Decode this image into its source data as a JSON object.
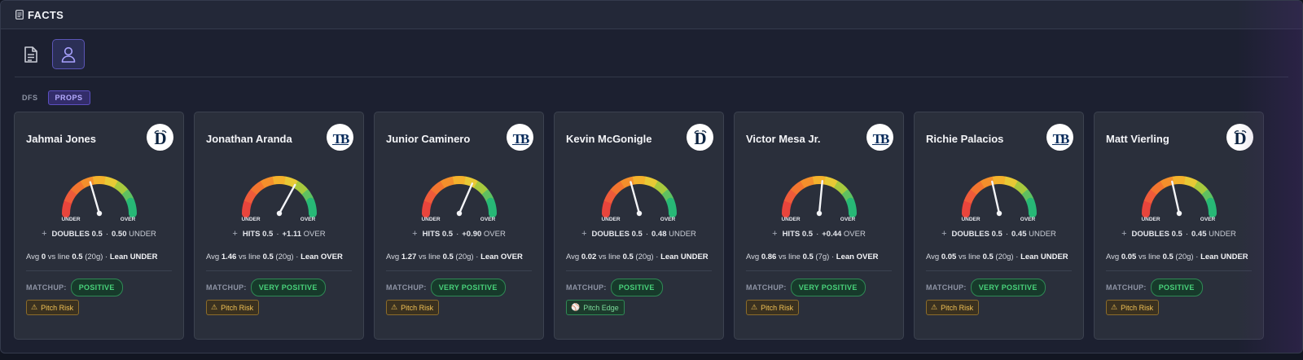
{
  "panel": {
    "title": "FACTS",
    "title_icon": "document-icon"
  },
  "tabs": [
    {
      "icon": "document-icon",
      "active": false
    },
    {
      "icon": "user-icon",
      "active": true
    }
  ],
  "modes": {
    "dfs_label": "DFS",
    "props_label": "PROPS",
    "active": "PROPS"
  },
  "gauge_labels": {
    "under": "UNDER",
    "over": "OVER"
  },
  "matchup_label": "MATCHUP:",
  "colors": {
    "accent": "#5b55b5",
    "positive": "#48d27a",
    "warning": "#f0c054",
    "tigers_navy": "#0c2340",
    "rays_navy": "#092c5c"
  },
  "cards": [
    {
      "name": "Jahmai Jones",
      "team_logo": "tigers-d-logo",
      "logo_text": "D",
      "stat": "DOUBLES 0.5",
      "edge": "0.50",
      "direction": "UNDER",
      "needle": -0.18,
      "avg_label": "Avg",
      "avg": "0",
      "vs_line": "vs line",
      "line": "0.5",
      "games": "(20g)",
      "lean_label": "Lean",
      "lean": "UNDER",
      "matchup": "POSITIVE",
      "risk": "Pitch Risk",
      "risk_type": "warn"
    },
    {
      "name": "Jonathan Aranda",
      "team_logo": "rays-tb-logo",
      "logo_text": "TB",
      "stat": "HITS 0.5",
      "edge": "+1.11",
      "direction": "OVER",
      "needle": 0.32,
      "avg_label": "Avg",
      "avg": "1.46",
      "vs_line": "vs line",
      "line": "0.5",
      "games": "(20g)",
      "lean_label": "Lean",
      "lean": "OVER",
      "matchup": "VERY POSITIVE",
      "risk": "Pitch Risk",
      "risk_type": "warn"
    },
    {
      "name": "Junior Caminero",
      "team_logo": "rays-tb-logo",
      "logo_text": "TB",
      "stat": "HITS 0.5",
      "edge": "+0.90",
      "direction": "OVER",
      "needle": 0.26,
      "avg_label": "Avg",
      "avg": "1.27",
      "vs_line": "vs line",
      "line": "0.5",
      "games": "(20g)",
      "lean_label": "Lean",
      "lean": "OVER",
      "matchup": "VERY POSITIVE",
      "risk": "Pitch Risk",
      "risk_type": "warn"
    },
    {
      "name": "Kevin McGonigle",
      "team_logo": "tigers-d-logo",
      "logo_text": "D",
      "stat": "DOUBLES 0.5",
      "edge": "0.48",
      "direction": "UNDER",
      "needle": -0.17,
      "avg_label": "Avg",
      "avg": "0.02",
      "vs_line": "vs line",
      "line": "0.5",
      "games": "(20g)",
      "lean_label": "Lean",
      "lean": "UNDER",
      "matchup": "POSITIVE",
      "risk": "Pitch Edge",
      "risk_type": "edge"
    },
    {
      "name": "Victor Mesa Jr.",
      "team_logo": "rays-tb-logo",
      "logo_text": "TB",
      "stat": "HITS 0.5",
      "edge": "+0.44",
      "direction": "OVER",
      "needle": 0.06,
      "avg_label": "Avg",
      "avg": "0.86",
      "vs_line": "vs line",
      "line": "0.5",
      "games": "(7g)",
      "lean_label": "Lean",
      "lean": "OVER",
      "matchup": "VERY POSITIVE",
      "risk": "Pitch Risk",
      "risk_type": "warn"
    },
    {
      "name": "Richie Palacios",
      "team_logo": "rays-tb-logo",
      "logo_text": "TB",
      "stat": "DOUBLES 0.5",
      "edge": "0.45",
      "direction": "UNDER",
      "needle": -0.14,
      "avg_label": "Avg",
      "avg": "0.05",
      "vs_line": "vs line",
      "line": "0.5",
      "games": "(20g)",
      "lean_label": "Lean",
      "lean": "UNDER",
      "matchup": "VERY POSITIVE",
      "risk": "Pitch Risk",
      "risk_type": "warn"
    },
    {
      "name": "Matt Vierling",
      "team_logo": "tigers-d-logo",
      "logo_text": "D",
      "stat": "DOUBLES 0.5",
      "edge": "0.45",
      "direction": "UNDER",
      "needle": -0.14,
      "avg_label": "Avg",
      "avg": "0.05",
      "vs_line": "vs line",
      "line": "0.5",
      "games": "(20g)",
      "lean_label": "Lean",
      "lean": "UNDER",
      "matchup": "POSITIVE",
      "risk": "Pitch Risk",
      "risk_type": "warn"
    }
  ]
}
